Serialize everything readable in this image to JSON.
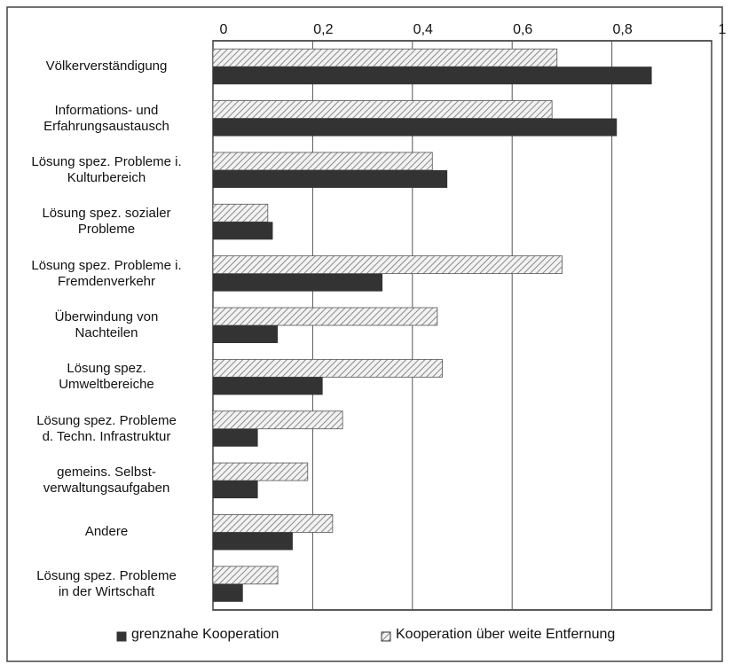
{
  "chart_data": {
    "type": "hbar",
    "categories": [
      "Völkerverständigung",
      "Informations- und\nErfahrungsaustausch",
      "Lösung spez. Probleme i.\nKulturbereich",
      "Lösung spez. sozialer\nProbleme",
      "Lösung spez. Probleme i.\nFremdenverkehr",
      "Überwindung von\nNachteilen",
      "Lösung spez.\nUmweltbereiche",
      "Lösung spez. Probleme\nd. Techn. Infrastruktur",
      "gemeins. Selbst-\nverwaltungsaufgaben",
      "Andere",
      "Lösung spez. Probleme\nin der Wirtschaft"
    ],
    "series": [
      {
        "name": "grenznahe Kooperation",
        "color": "#333333",
        "values": [
          0.88,
          0.81,
          0.47,
          0.12,
          0.34,
          0.13,
          0.22,
          0.09,
          0.09,
          0.16,
          0.06
        ]
      },
      {
        "name": "Kooperation über weite Entfernung",
        "color": "#8a8a8a",
        "values": [
          0.69,
          0.68,
          0.44,
          0.11,
          0.7,
          0.45,
          0.46,
          0.26,
          0.19,
          0.24,
          0.13
        ]
      }
    ],
    "xlim": [
      0,
      1
    ],
    "xticks": [
      0,
      {
        "value": 0.2,
        "label": "0,2"
      },
      {
        "value": 0.4,
        "label": "0,4"
      },
      {
        "value": 0.6,
        "label": "0,6"
      },
      {
        "value": 0.8,
        "label": "0,8"
      },
      1
    ],
    "grid": true,
    "legend": "bottom"
  }
}
